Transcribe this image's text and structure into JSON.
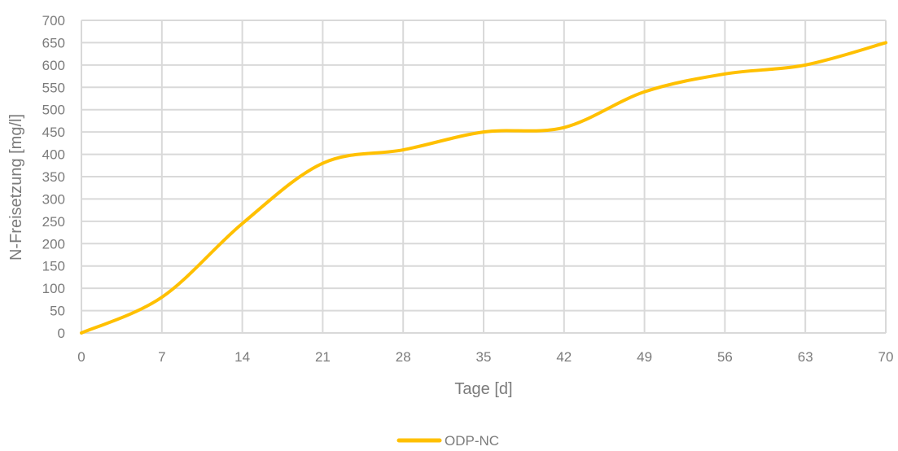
{
  "chart_data": {
    "type": "line",
    "title": "",
    "xlabel": "Tage [d]",
    "ylabel": "N-Freisetzung [mg/l]",
    "x": [
      0,
      7,
      14,
      21,
      28,
      35,
      42,
      49,
      56,
      63,
      70
    ],
    "xticks": [
      "0",
      "7",
      "14",
      "21",
      "28",
      "35",
      "42",
      "49",
      "56",
      "63",
      "70"
    ],
    "yticks": [
      "0",
      "50",
      "100",
      "150",
      "200",
      "250",
      "300",
      "350",
      "400",
      "450",
      "500",
      "550",
      "600",
      "650",
      "700"
    ],
    "xlim": [
      0,
      70
    ],
    "ylim": [
      0,
      700
    ],
    "grid": true,
    "smooth": true,
    "legend_position": "bottom",
    "series": [
      {
        "name": "ODP-NC",
        "color": "#ffc000",
        "values": [
          0,
          80,
          245,
          380,
          410,
          450,
          460,
          540,
          580,
          600,
          650
        ]
      }
    ],
    "colors": {
      "grid": "#d9d9d9",
      "text": "#7b7b7b"
    }
  }
}
